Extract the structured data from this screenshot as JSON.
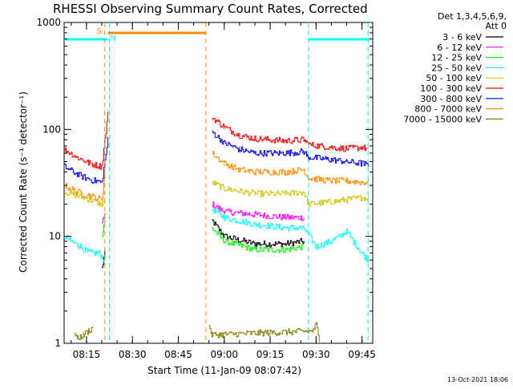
{
  "chart_data": {
    "type": "line",
    "title": "RHESSI Observing Summary Count Rates, Corrected",
    "xlabel": "Start Time (11-Jan-09 08:07:42)",
    "ylabel": "Corrected Count Rate (s⁻¹ detector⁻¹)",
    "x_ticks": [
      "08:15",
      "08:30",
      "08:45",
      "09:00",
      "09:15",
      "09:30",
      "09:45"
    ],
    "y_ticks": [
      "1",
      "10",
      "100",
      "1000"
    ],
    "y_scale": "log",
    "ylim": [
      1,
      1000
    ],
    "xlim": [
      "08:07:42",
      "09:48:30"
    ],
    "legend_header": [
      "Det 1,3,4,5,6,9,",
      "Att 0"
    ],
    "legend_position": "right",
    "timestamp": "13-Oct-2021 18:06",
    "flags": [
      {
        "label": "S",
        "color": "#ff8c00",
        "start": "08:22:00",
        "end": "08:54:00"
      },
      {
        "label": "N",
        "color": "#00ffff",
        "start": "08:07:42",
        "end": "08:22:00"
      },
      {
        "label": "",
        "color": "#00ffff",
        "start": "09:27:30",
        "end": "09:47:30"
      }
    ],
    "markers": [
      {
        "time": "08:21:00",
        "color": "#ff8c00"
      },
      {
        "time": "08:22:30",
        "color": "#00ffff"
      },
      {
        "time": "08:54:00",
        "color": "#ff8c00"
      },
      {
        "time": "09:27:30",
        "color": "#00ffff"
      },
      {
        "time": "09:47:00",
        "color": "#00ffff"
      }
    ],
    "gap": [
      "08:22:00",
      "08:56:00"
    ],
    "series": [
      {
        "name": "3 - 6 keV",
        "color": "#000000",
        "x": [
          "08:20:00",
          "08:21:00",
          "08:56:00",
          "09:00:00",
          "09:10:00",
          "09:20:00",
          "09:26:00"
        ],
        "values": [
          5,
          7,
          14,
          10,
          8.5,
          8.5,
          9
        ]
      },
      {
        "name": "6 - 12 keV",
        "color": "#ff00ff",
        "x": [
          "08:20:00",
          "08:21:00",
          "08:56:00",
          "09:00:00",
          "09:10:00",
          "09:20:00",
          "09:26:00"
        ],
        "values": [
          13,
          16,
          20,
          17,
          16,
          15,
          15
        ]
      },
      {
        "name": "12 - 25 keV",
        "color": "#00ff00",
        "x": [
          "08:20:00",
          "08:21:00",
          "08:56:00",
          "09:00:00",
          "09:10:00",
          "09:20:00",
          "09:26:00"
        ],
        "values": [
          10,
          14,
          12,
          9,
          7.5,
          7.5,
          8
        ]
      },
      {
        "name": "25 - 50 keV",
        "color": "#00ffff",
        "x": [
          "08:07:42",
          "08:10:00",
          "08:13:00",
          "08:16:00",
          "08:19:00",
          "08:21:00",
          "08:56:00",
          "09:00:00",
          "09:10:00",
          "09:20:00",
          "09:26:00",
          "09:30:00",
          "09:35:00",
          "09:40:00",
          "09:45:00",
          "09:47:00"
        ],
        "values": [
          10,
          9,
          8,
          7,
          7,
          6,
          18,
          15,
          13,
          12,
          12,
          8,
          9,
          11,
          7,
          6
        ]
      },
      {
        "name": "50 - 100 keV",
        "color": "#d4c400",
        "x": [
          "08:07:42",
          "08:12:00",
          "08:16:00",
          "08:20:00",
          "08:21:00",
          "08:56:00",
          "09:00:00",
          "09:10:00",
          "09:20:00",
          "09:26:00",
          "09:27:30",
          "09:35:00",
          "09:40:00",
          "09:45:00",
          "09:47:00"
        ],
        "values": [
          26,
          24,
          22,
          20,
          22,
          32,
          28,
          25,
          25,
          26,
          20,
          21,
          22,
          23,
          23
        ]
      },
      {
        "name": "100 - 300 keV",
        "color": "#ff0000",
        "x": [
          "08:07:42",
          "08:12:00",
          "08:16:00",
          "08:20:00",
          "08:22:00",
          "08:56:00",
          "09:00:00",
          "09:05:00",
          "09:10:00",
          "09:20:00",
          "09:26:00",
          "09:27:30",
          "09:35:00",
          "09:40:00",
          "09:45:00",
          "09:47:00"
        ],
        "values": [
          65,
          55,
          48,
          45,
          140,
          130,
          105,
          88,
          82,
          78,
          80,
          72,
          68,
          66,
          68,
          65
        ]
      },
      {
        "name": "300 - 800 keV",
        "color": "#0000ff",
        "x": [
          "08:07:42",
          "08:12:00",
          "08:16:00",
          "08:20:00",
          "08:22:00",
          "08:56:00",
          "09:00:00",
          "09:05:00",
          "09:10:00",
          "09:20:00",
          "09:26:00",
          "09:27:30",
          "09:35:00",
          "09:40:00",
          "09:45:00",
          "09:47:00"
        ],
        "values": [
          45,
          38,
          34,
          32,
          80,
          95,
          75,
          65,
          60,
          60,
          62,
          55,
          52,
          50,
          48,
          46
        ]
      },
      {
        "name": "800 - 7000 keV",
        "color": "#ff8c00",
        "x": [
          "08:07:42",
          "08:12:00",
          "08:16:00",
          "08:20:00",
          "08:21:00",
          "08:56:00",
          "09:00:00",
          "09:05:00",
          "09:10:00",
          "09:20:00",
          "09:26:00",
          "09:27:30",
          "09:35:00",
          "09:40:00",
          "09:45:00",
          "09:47:00"
        ],
        "values": [
          30,
          26,
          24,
          22,
          40,
          60,
          48,
          42,
          40,
          40,
          42,
          35,
          33,
          33,
          32,
          32
        ]
      },
      {
        "name": "7000 - 15000 keV",
        "color": "#808000",
        "x": [
          "08:11:00",
          "08:12:00",
          "08:14:00",
          "08:17:00",
          "08:55:00",
          "08:56:00",
          "09:29:00",
          "09:30:00",
          "09:31:00"
        ],
        "values": [
          1.3,
          1.1,
          1.2,
          1.4,
          1.5,
          1.2,
          1.3,
          1.5,
          1.1
        ]
      }
    ]
  }
}
